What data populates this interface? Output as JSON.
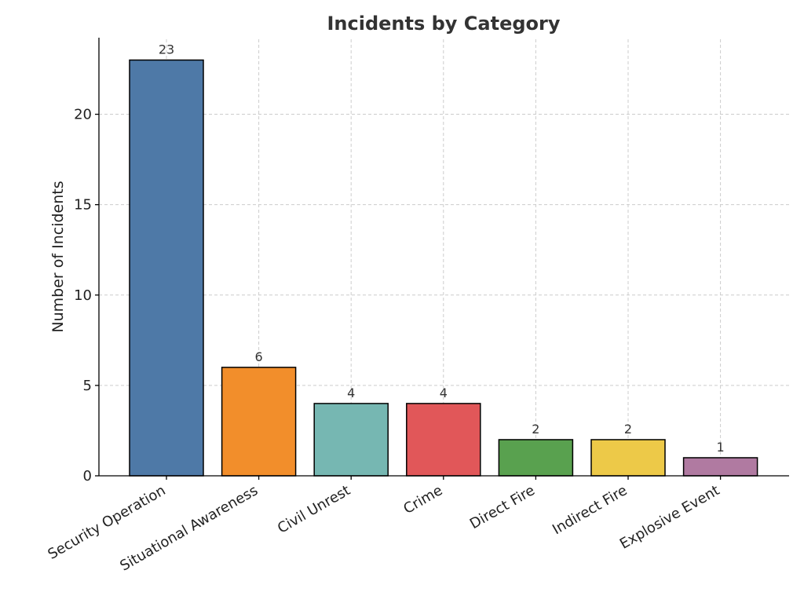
{
  "chart_data": {
    "type": "bar",
    "title": "Incidents by Category",
    "xlabel": "",
    "ylabel": "Number of Incidents",
    "categories": [
      "Security Operation",
      "Situational Awareness",
      "Civil Unrest",
      "Crime",
      "Direct Fire",
      "Indirect Fire",
      "Explosive Event"
    ],
    "values": [
      23,
      6,
      4,
      4,
      2,
      2,
      1
    ],
    "colors": [
      "#4e79a7",
      "#f28e2b",
      "#76b7b2",
      "#e15759",
      "#59a14f",
      "#edc948",
      "#b07aa1"
    ],
    "ylim": [
      0,
      24.15
    ],
    "yticks": [
      0,
      5,
      10,
      15,
      20
    ],
    "grid": true,
    "legend": "none"
  }
}
